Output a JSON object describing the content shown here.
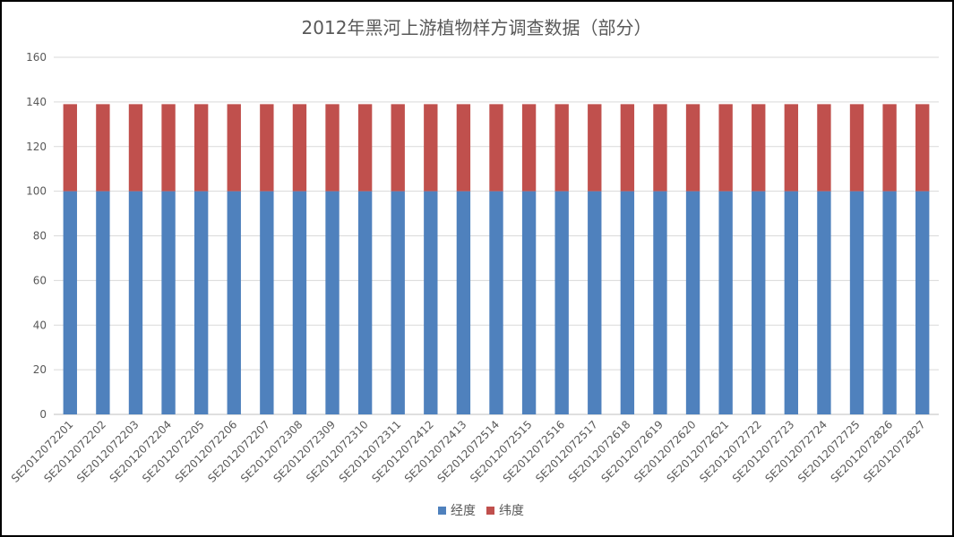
{
  "chart_data": {
    "type": "bar",
    "stacked": true,
    "title": "2012年黑河上游植物样方调查数据（部分）",
    "xlabel": "",
    "ylabel": "",
    "ylim": [
      0,
      160
    ],
    "yticks": [
      0,
      20,
      40,
      60,
      80,
      100,
      120,
      140,
      160
    ],
    "grid": true,
    "legend_position": "bottom",
    "categories": [
      "SE2012072201",
      "SE2012072202",
      "SE2012072203",
      "SE2012072204",
      "SE2012072205",
      "SE2012072206",
      "SE2012072207",
      "SE2012072308",
      "SE2012072309",
      "SE2012072310",
      "SE2012072311",
      "SE2012072412",
      "SE2012072413",
      "SE2012072514",
      "SE2012072515",
      "SE2012072516",
      "SE2012072517",
      "SE2012072618",
      "SE2012072619",
      "SE2012072620",
      "SE2012072621",
      "SE2012072722",
      "SE2012072723",
      "SE2012072724",
      "SE2012072725",
      "SE2012072826",
      "SE2012072827"
    ],
    "series": [
      {
        "name": "经度",
        "color": "#4f81bd",
        "values": [
          100,
          100,
          100,
          100,
          100,
          100,
          100,
          100,
          100,
          100,
          100,
          100,
          100,
          100,
          100,
          100,
          100,
          100,
          100,
          100,
          100,
          100,
          100,
          100,
          100,
          100,
          100
        ]
      },
      {
        "name": "纬度",
        "color": "#c0504d",
        "values": [
          39,
          39,
          39,
          39,
          39,
          39,
          39,
          39,
          39,
          39,
          39,
          39,
          39,
          39,
          39,
          39,
          39,
          39,
          39,
          39,
          39,
          39,
          39,
          39,
          39,
          39,
          39
        ]
      }
    ]
  }
}
